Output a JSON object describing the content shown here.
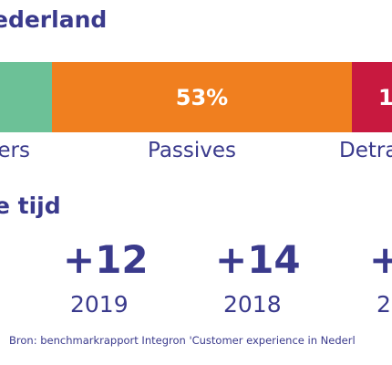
{
  "title": "ederland",
  "subtitle": "e tijd",
  "source": "Bron: benchmarkrapport Integron 'Customer experience in Nederl",
  "colors": {
    "text": "#3a3a8c",
    "promoters": "#6cc197",
    "passives": "#f07f1f",
    "detractors": "#c8193f"
  },
  "chart_data": [
    {
      "type": "bar",
      "orientation": "horizontal-stacked",
      "categories": [
        "ers",
        "Passives",
        "Detra"
      ],
      "segment_labels": [
        "",
        "53%",
        "1"
      ],
      "values": [
        null,
        53,
        null
      ],
      "unit": "%"
    },
    {
      "type": "table",
      "scores": [
        "+12",
        "+14",
        "+"
      ],
      "years": [
        "2019",
        "2018",
        "2"
      ]
    }
  ]
}
